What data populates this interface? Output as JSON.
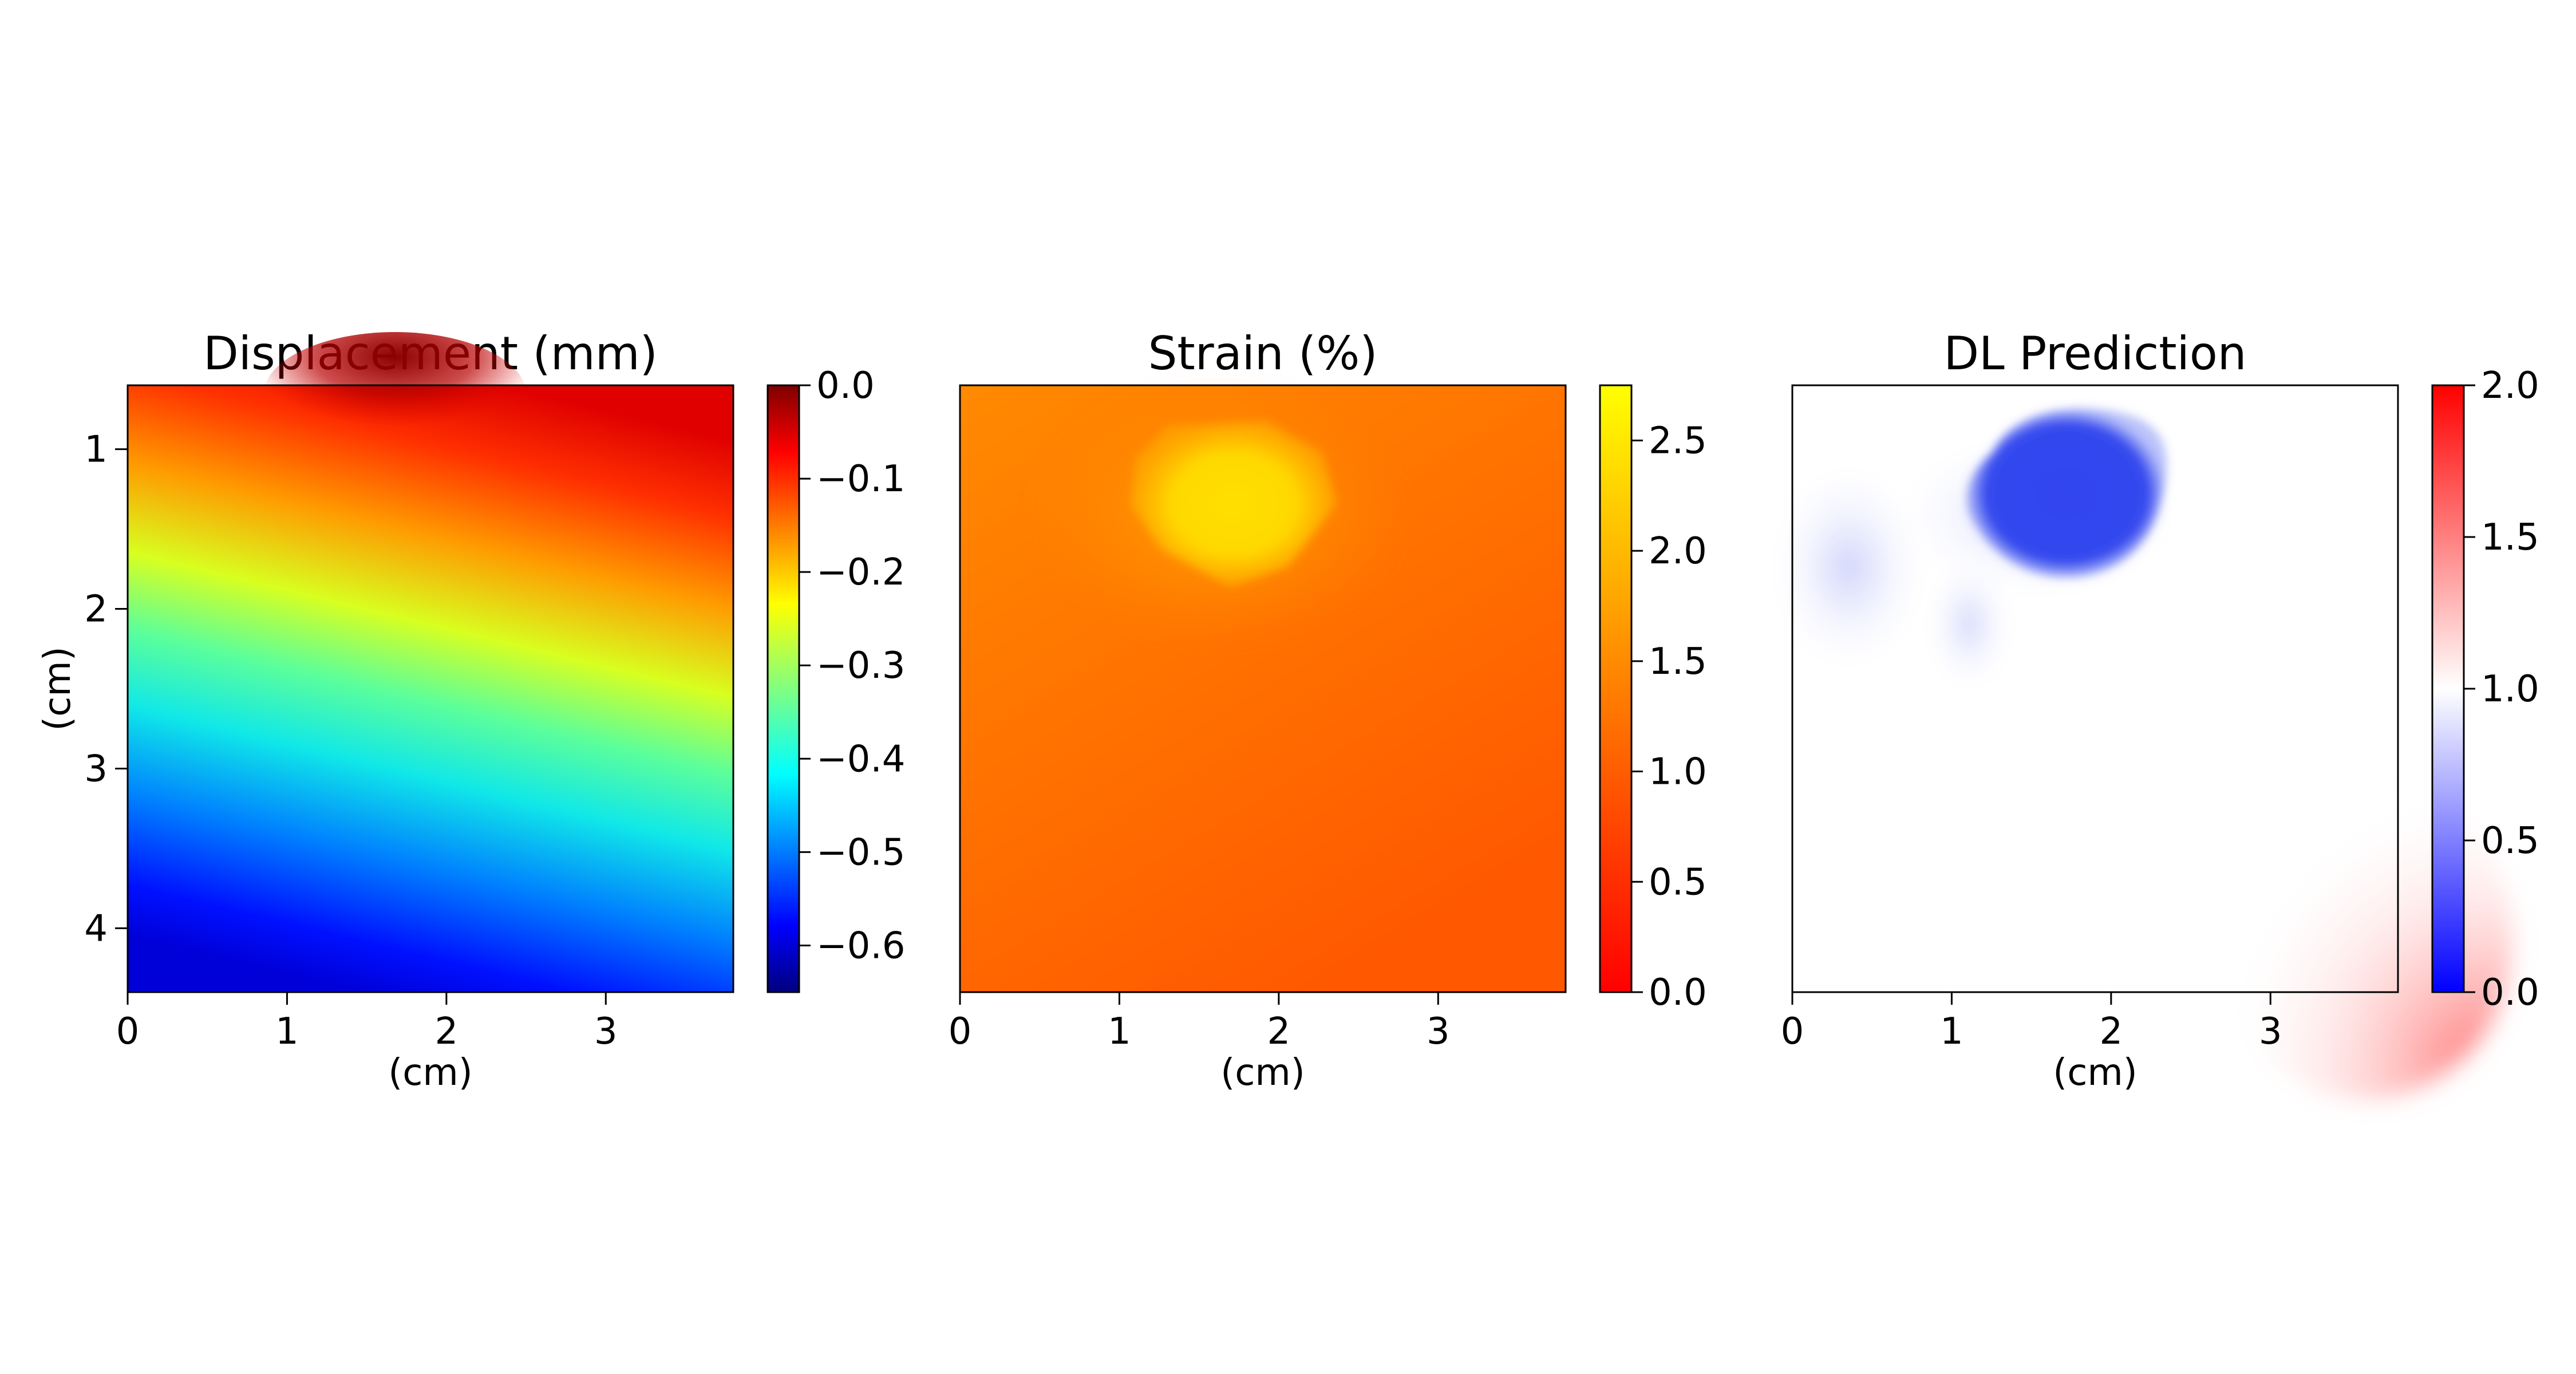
{
  "chart_data": [
    {
      "type": "heatmap",
      "title": "Displacement (mm)",
      "xlabel": "(cm)",
      "ylabel": "(cm)",
      "xlim": [
        0,
        3.8
      ],
      "ylim": [
        4.4,
        0.6
      ],
      "x_ticks": [
        "0",
        "1",
        "2",
        "3"
      ],
      "y_ticks": [
        "1",
        "2",
        "3",
        "4"
      ],
      "colormap": "jet",
      "colorbar": {
        "min": -0.65,
        "max": 0.0,
        "ticks": [
          "0.0",
          "−0.1",
          "−0.2",
          "−0.3",
          "−0.4",
          "−0.5",
          "−0.6"
        ]
      },
      "field_description": "values near 0.0 along top edge with darkest peak near x=1.5 cm, decreasing downward to about -0.62 at bottom-left corner; contours slope upward to the right"
    },
    {
      "type": "heatmap",
      "title": "Strain (%)",
      "xlabel": "(cm)",
      "ylabel": "",
      "xlim": [
        0,
        3.8
      ],
      "ylim": [
        4.4,
        0.6
      ],
      "x_ticks": [
        "0",
        "1",
        "2",
        "3"
      ],
      "y_ticks": [],
      "colormap": "autumn",
      "colorbar": {
        "min": 0.0,
        "max": 2.75,
        "ticks": [
          "0.0",
          "0.5",
          "1.0",
          "1.5",
          "2.0",
          "2.5"
        ]
      },
      "field_description": "mostly about 0.8-1.2 everywhere with a high-strain patch of about 2.3 centered near x=1.7 cm, y=1.3 cm"
    },
    {
      "type": "heatmap",
      "title": "DL Prediction",
      "xlabel": "(cm)",
      "ylabel": "",
      "xlim": [
        0,
        3.8
      ],
      "ylim": [
        4.4,
        0.6
      ],
      "x_ticks": [
        "0",
        "1",
        "2",
        "3"
      ],
      "y_ticks": [],
      "colormap": "bwr",
      "colorbar": {
        "min": 0.0,
        "max": 2.0,
        "ticks": [
          "0.0",
          "0.5",
          "1.0",
          "1.5",
          "2.0"
        ]
      },
      "field_description": "background about 1.0 (white); blue inclusion of about 0.2 centered near x=1.7 cm, y=1.2 cm; faint blue patches at left; faint red of about 1.3 in bottom-right corner"
    }
  ]
}
